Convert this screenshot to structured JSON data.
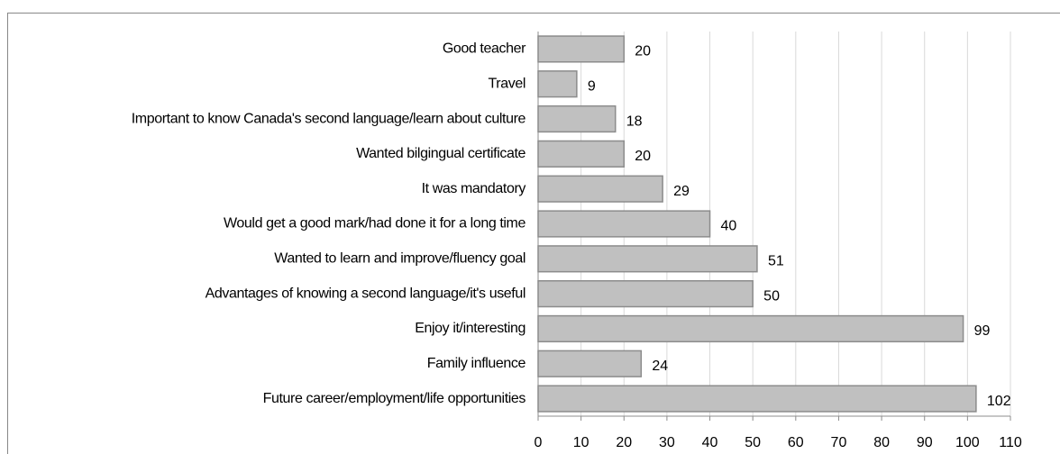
{
  "chart_data": {
    "type": "barh",
    "categories": [
      "Good teacher",
      "Travel",
      "Important to know Canada's second language/learn about culture",
      "Wanted bilgingual certificate",
      "It was mandatory",
      "Would get a good mark/had done it for a long time",
      "Wanted to learn and improve/fluency goal",
      "Advantages of knowing a second language/it's useful",
      "Enjoy it/interesting",
      "Family influence",
      "Future career/employment/life opportunities"
    ],
    "values": [
      20,
      9,
      18,
      20,
      29,
      40,
      51,
      50,
      99,
      24,
      102
    ],
    "color": "#c0c0c0",
    "xlim": [
      0,
      110
    ],
    "xticks": [
      0,
      10,
      20,
      30,
      40,
      50,
      60,
      70,
      80,
      90,
      100,
      110
    ],
    "grid": true
  }
}
